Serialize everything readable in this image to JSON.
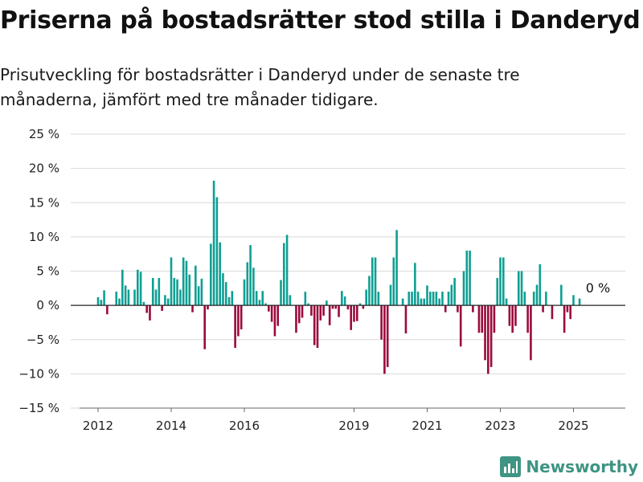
{
  "header": {
    "title": "Priserna på bostadsrätter stod stilla i Danderyd",
    "subtitle": "Prisutveckling för bostadsrätter i Danderyd under de senaste tre månaderna, jämfört med tre månader tidigare."
  },
  "brand": {
    "name": "Newsworthy",
    "icon": "newsworthy-logo-icon"
  },
  "colors": {
    "positive": "#0e9f93",
    "negative": "#9b0a3c",
    "grid": "#d9d9d9",
    "zero_line": "#222222",
    "brand": "#3f9483"
  },
  "chart_data": {
    "type": "bar",
    "title": "",
    "xlabel": "",
    "ylabel": "",
    "ylim": [
      -15,
      25
    ],
    "grid": true,
    "yticks": [
      25,
      20,
      15,
      10,
      5,
      0,
      -5,
      -10,
      -15
    ],
    "ytick_labels": [
      "25 %",
      "20 %",
      "15 %",
      "10 %",
      "5 %",
      "0 %",
      "−5 %",
      "−10 %",
      "−15 %"
    ],
    "xticks": [
      {
        "label": "2012",
        "year": 2012
      },
      {
        "label": "2014",
        "year": 2014
      },
      {
        "label": "2016",
        "year": 2016
      },
      {
        "label": "2019",
        "year": 2019
      },
      {
        "label": "2021",
        "year": 2021
      },
      {
        "label": "2023",
        "year": 2023
      },
      {
        "label": "2025",
        "year": 2025
      }
    ],
    "start": "2012-01",
    "annotation": "0 %",
    "values": [
      1.2,
      0.8,
      2.2,
      -1.3,
      0,
      0,
      2.0,
      1.0,
      5.2,
      2.9,
      2.3,
      0,
      2.3,
      5.2,
      4.9,
      0.5,
      -1.1,
      -2.2,
      4.0,
      2.3,
      4.0,
      -0.8,
      1.5,
      1.0,
      7.0,
      4.0,
      3.8,
      2.3,
      7.0,
      6.5,
      4.5,
      -1.0,
      5.8,
      2.8,
      3.9,
      -6.4,
      -0.6,
      9.0,
      18.2,
      15.8,
      9.2,
      4.7,
      3.4,
      1.2,
      2.1,
      -6.2,
      -4.5,
      -3.5,
      3.8,
      6.3,
      8.8,
      5.5,
      2.1,
      0.8,
      2.1,
      0.3,
      -0.9,
      -2.4,
      -4.5,
      -3.0,
      3.7,
      9.1,
      10.3,
      1.5,
      0,
      -4.0,
      -2.6,
      -1.8,
      2.0,
      0.3,
      -1.5,
      -5.8,
      -6.2,
      -2.2,
      -1.5,
      0.7,
      -2.9,
      -0.5,
      -0.5,
      -1.7,
      2.1,
      1.3,
      -0.6,
      -3.6,
      -2.4,
      -2.3,
      0.3,
      -0.5,
      2.3,
      4.3,
      7.0,
      7.0,
      2.0,
      -5.0,
      -10.0,
      -9.0,
      3.0,
      7.0,
      11.0,
      0,
      1.0,
      -4.1,
      2.0,
      2.0,
      6.2,
      2.0,
      1.0,
      1.0,
      2.9,
      2.0,
      2.0,
      2.0,
      1.0,
      2.0,
      -1.0,
      2.0,
      3.0,
      4.0,
      -1.0,
      -6.0,
      5.0,
      8.0,
      8.0,
      -1.0,
      0,
      -4.0,
      -4.0,
      -8.0,
      -10.0,
      -9.0,
      -4.0,
      4.0,
      7.0,
      7.0,
      1.0,
      -3.0,
      -4.0,
      -3.0,
      5.0,
      5.0,
      2.0,
      -4.0,
      -8.0,
      2.0,
      3.0,
      6.0,
      -1.0,
      2.0,
      0,
      -2.0,
      0,
      0,
      3.0,
      -4.0,
      -1.0,
      -2.0,
      1.5,
      0,
      1.0
    ]
  }
}
